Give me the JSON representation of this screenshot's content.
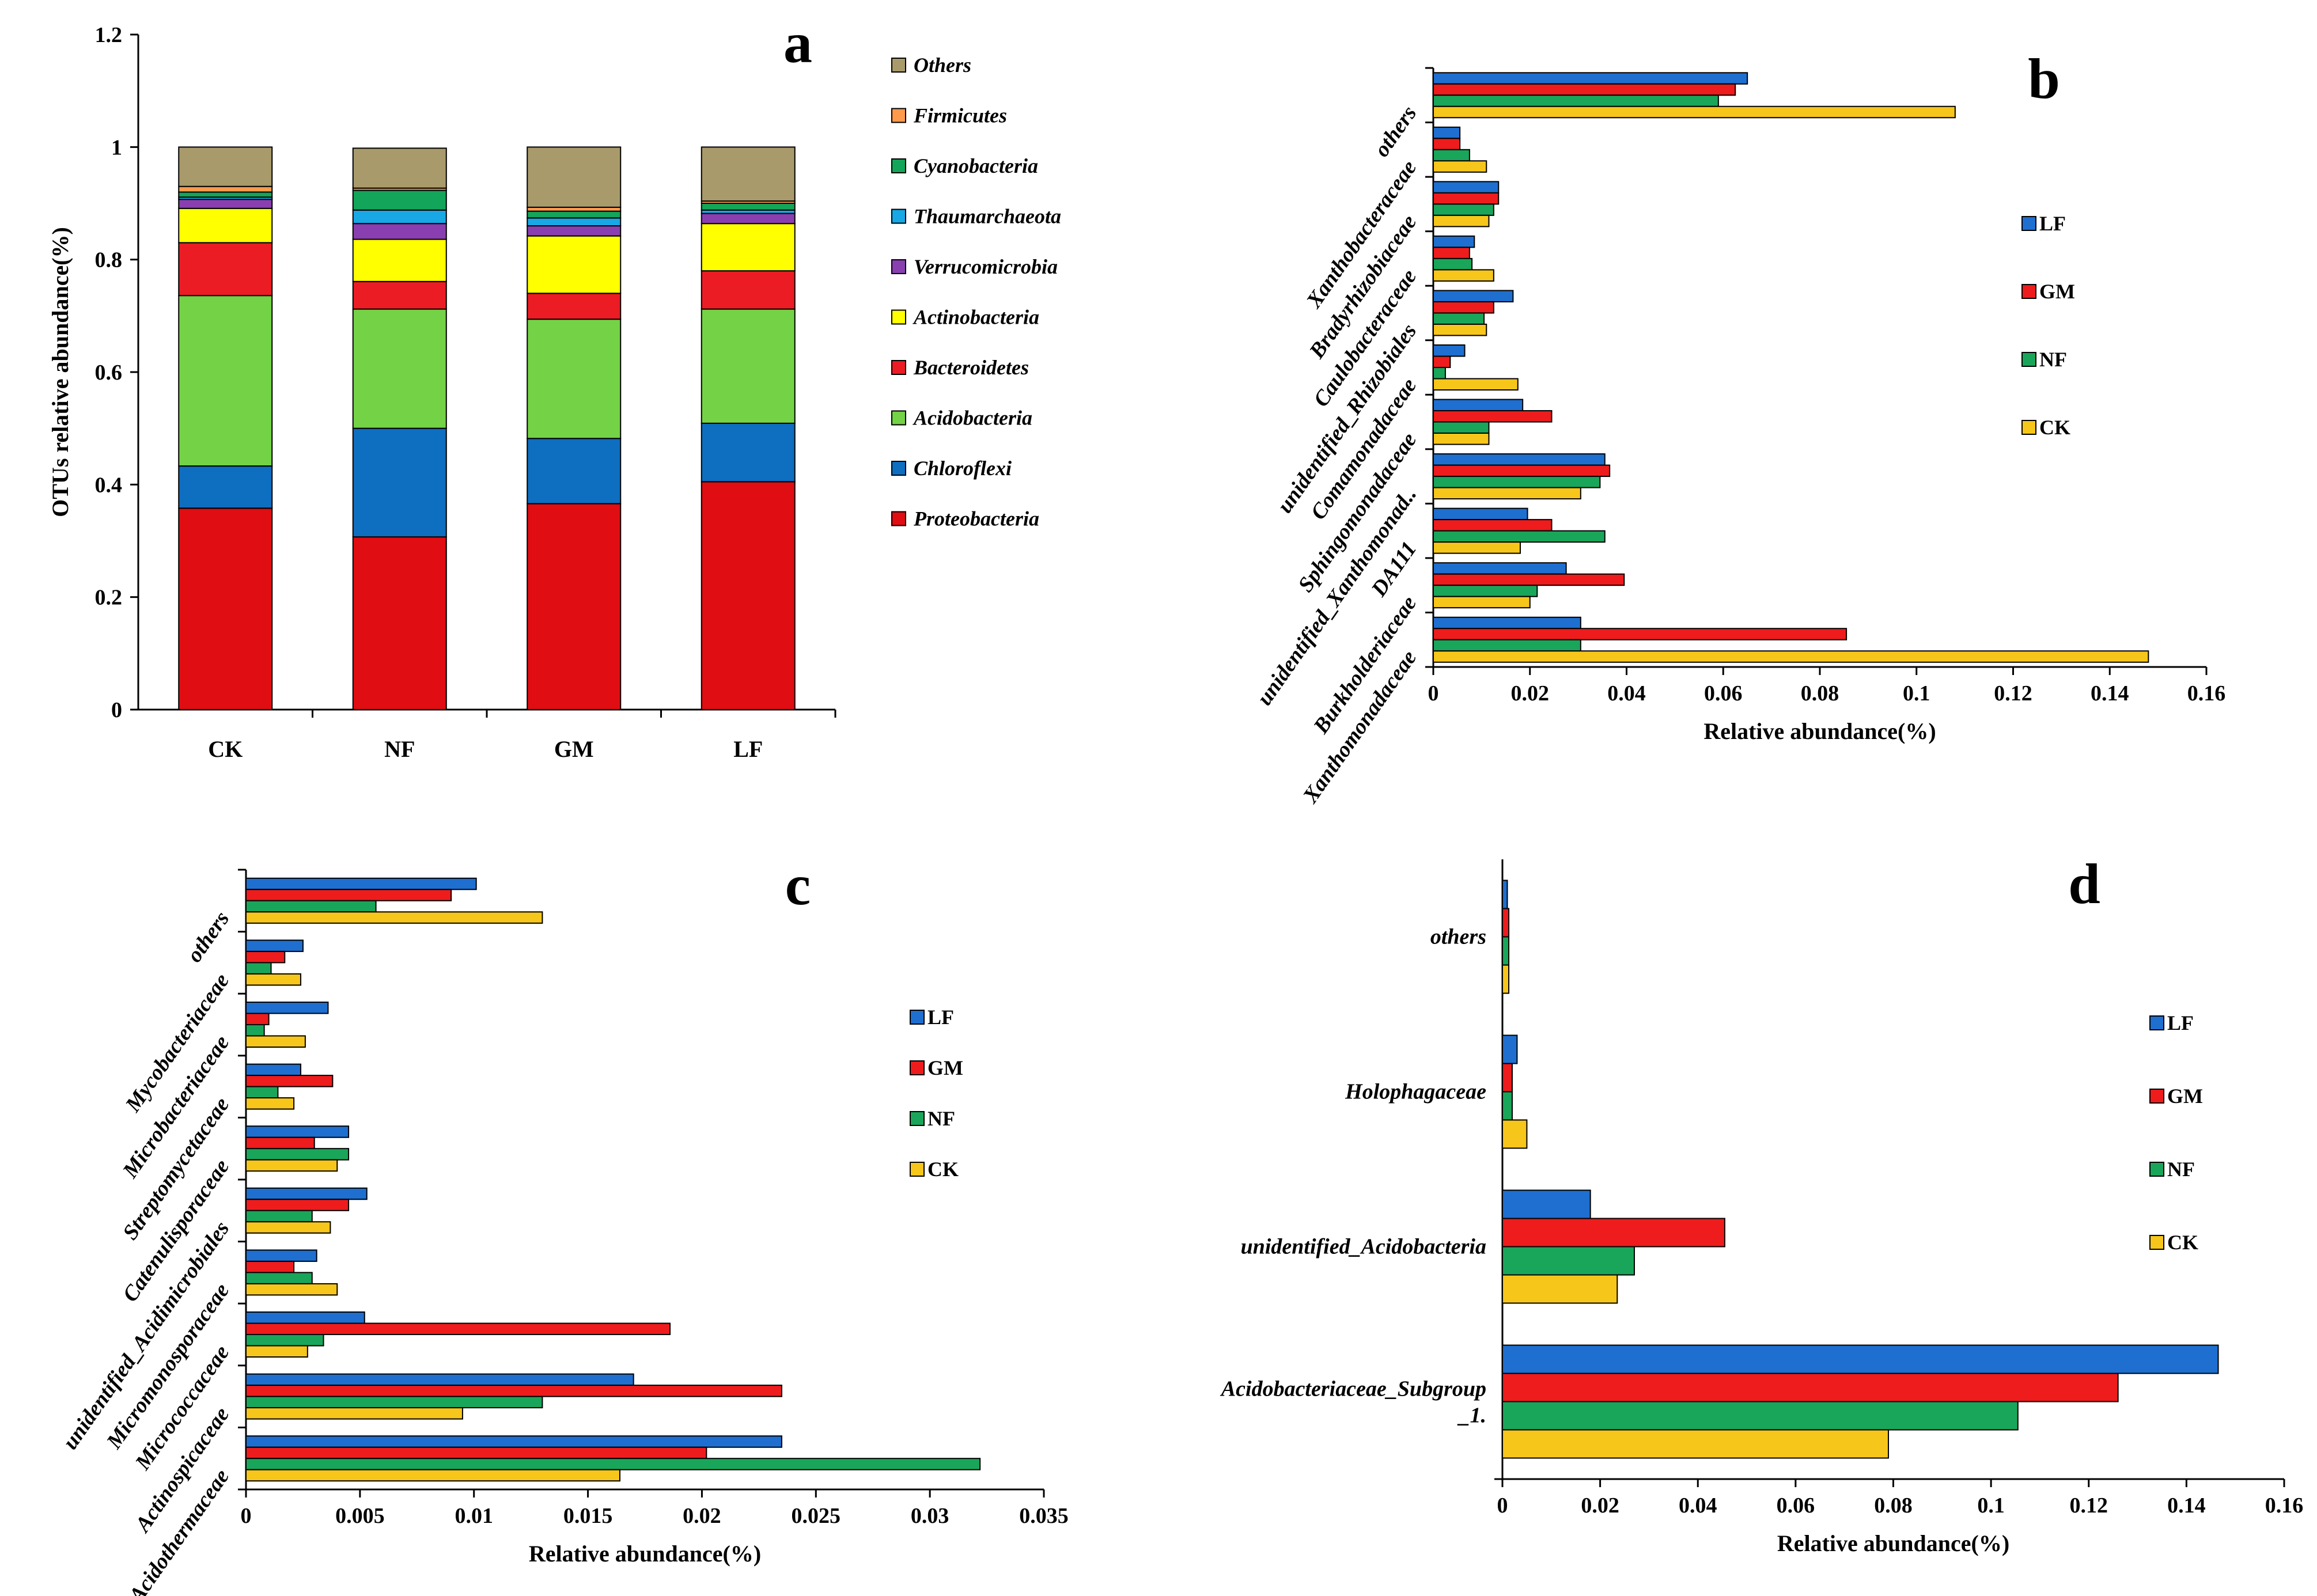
{
  "colors": {
    "Proteobacteria": "#e00d12",
    "Chloroflexi": "#0e6ec0",
    "Acidobacteria": "#74d246",
    "Bacteroidetes": "#ec1c24",
    "Actinobacteria": "#ffff00",
    "Verrucomicrobia": "#8a3fb0",
    "Thaumarchaeota": "#18a8e6",
    "Cyanobacteria": "#13a55a",
    "Firmicutes": "#ff9a4c",
    "Others": "#a99a6b",
    "LF": "#1e6fd0",
    "GM": "#ee1c1c",
    "NF": "#1aa65a",
    "CK": "#f7c61a"
  },
  "chart_data": [
    {
      "type": "bar",
      "stacked": true,
      "panel_label": "a",
      "ylabel": "OTUs relative abundance(%)",
      "ylim": [
        0,
        1.2
      ],
      "yticks": [
        "0",
        "0.2",
        "0.4",
        "0.6",
        "0.8",
        "1",
        "1.2"
      ],
      "categories": [
        "CK",
        "NF",
        "GM",
        "LF"
      ],
      "legend_position": "right",
      "series": [
        {
          "name": "Proteobacteria",
          "values": [
            0.358,
            0.307,
            0.366,
            0.405
          ]
        },
        {
          "name": "Chloroflexi",
          "values": [
            0.075,
            0.193,
            0.116,
            0.104
          ]
        },
        {
          "name": "Acidobacteria",
          "values": [
            0.303,
            0.212,
            0.212,
            0.203
          ]
        },
        {
          "name": "Bacteroidetes",
          "values": [
            0.094,
            0.049,
            0.046,
            0.068
          ]
        },
        {
          "name": "Actinobacteria",
          "values": [
            0.061,
            0.075,
            0.102,
            0.084
          ]
        },
        {
          "name": "Verrucomicrobia",
          "values": [
            0.016,
            0.028,
            0.018,
            0.018
          ]
        },
        {
          "name": "Thaumarchaeota",
          "values": [
            0.004,
            0.024,
            0.014,
            0.006
          ]
        },
        {
          "name": "Cyanobacteria",
          "values": [
            0.009,
            0.035,
            0.012,
            0.012
          ]
        },
        {
          "name": "Firmicutes",
          "values": [
            0.01,
            0.004,
            0.007,
            0.004
          ]
        },
        {
          "name": "Others",
          "values": [
            0.07,
            0.071,
            0.107,
            0.096
          ]
        }
      ],
      "legend_order": [
        "Others",
        "Firmicutes",
        "Cyanobacteria",
        "Thaumarchaeota",
        "Verrucomicrobia",
        "Actinobacteria",
        "Bacteroidetes",
        "Acidobacteria",
        "Chloroflexi",
        "Proteobacteria"
      ]
    },
    {
      "type": "bar",
      "orientation": "horizontal",
      "panel_label": "b",
      "xlabel": "Relative abundance(%)",
      "xlim": [
        0,
        0.16
      ],
      "xticks": [
        "0",
        "0.02",
        "0.04",
        "0.06",
        "0.08",
        "0.1",
        "0.12",
        "0.14",
        "0.16"
      ],
      "categories": [
        "others",
        "Xanthobacteraceae",
        "Bradyrhizobiaceae",
        "Caulobacteraceae",
        "unidentified_Rhizobiales",
        "Comamonadaceae",
        "Sphingomonadaceae",
        "unidentified_Xanthomonad..",
        "DA111",
        "Burkholderiaceae",
        "Xanthomonadaceae"
      ],
      "legend_position": "right",
      "series": [
        {
          "name": "LF",
          "values": [
            0.065,
            0.0055,
            0.0135,
            0.0085,
            0.0165,
            0.0065,
            0.0185,
            0.0355,
            0.0195,
            0.0275,
            0.0305
          ]
        },
        {
          "name": "GM",
          "values": [
            0.0625,
            0.0055,
            0.0135,
            0.0075,
            0.0125,
            0.0035,
            0.0245,
            0.0365,
            0.0245,
            0.0395,
            0.0855
          ]
        },
        {
          "name": "NF",
          "values": [
            0.059,
            0.0075,
            0.0125,
            0.008,
            0.0105,
            0.0025,
            0.0115,
            0.0345,
            0.0355,
            0.0215,
            0.0305
          ]
        },
        {
          "name": "CK",
          "values": [
            0.108,
            0.011,
            0.0115,
            0.0125,
            0.011,
            0.0175,
            0.0115,
            0.0305,
            0.018,
            0.02,
            0.148
          ]
        }
      ]
    },
    {
      "type": "bar",
      "orientation": "horizontal",
      "panel_label": "c",
      "xlabel": "Relative abundance(%)",
      "xlim": [
        0,
        0.035
      ],
      "xticks": [
        "0",
        "0.005",
        "0.01",
        "0.015",
        "0.02",
        "0.025",
        "0.03",
        "0.035"
      ],
      "categories": [
        "others",
        "Mycobacteriaceae",
        "Microbacteriaceae",
        "Streptomycetaceae",
        "Catenulisporaceae",
        "unidentified_Acidimicrobiales",
        "Micromonosporaceae",
        "Micrococcaceae",
        "Actinospicaceae",
        "Acidothermaceae"
      ],
      "legend_position": "right",
      "series": [
        {
          "name": "LF",
          "values": [
            0.0101,
            0.0025,
            0.0036,
            0.0024,
            0.0045,
            0.0053,
            0.0031,
            0.0052,
            0.017,
            0.0235
          ]
        },
        {
          "name": "GM",
          "values": [
            0.009,
            0.0017,
            0.001,
            0.0038,
            0.003,
            0.0045,
            0.0021,
            0.0186,
            0.0235,
            0.0202
          ]
        },
        {
          "name": "NF",
          "values": [
            0.0057,
            0.0011,
            0.0008,
            0.0014,
            0.0045,
            0.0029,
            0.0029,
            0.0034,
            0.013,
            0.0322
          ]
        },
        {
          "name": "CK",
          "values": [
            0.013,
            0.0024,
            0.0026,
            0.0021,
            0.004,
            0.0037,
            0.004,
            0.0027,
            0.0095,
            0.0164
          ]
        }
      ]
    },
    {
      "type": "bar",
      "orientation": "horizontal",
      "panel_label": "d",
      "xlabel": "Relative abundance(%)",
      "xlim": [
        0,
        0.16
      ],
      "xticks": [
        "0",
        "0.02",
        "0.04",
        "0.06",
        "0.08",
        "0.1",
        "0.12",
        "0.14",
        "0.16"
      ],
      "categories": [
        "others",
        "Holophagaceae",
        "unidentified_Acidobacteria",
        "Acidobacteriaceae_Subgroup _1."
      ],
      "category_display": [
        [
          "others"
        ],
        [
          "Holophagaceae"
        ],
        [
          "unidentified_Acidobacteria"
        ],
        [
          "Acidobacteriaceae_Subgroup",
          "_1."
        ]
      ],
      "legend_position": "right",
      "series": [
        {
          "name": "LF",
          "values": [
            0.001,
            0.003,
            0.018,
            0.1465
          ]
        },
        {
          "name": "GM",
          "values": [
            0.0013,
            0.002,
            0.0455,
            0.126
          ]
        },
        {
          "name": "NF",
          "values": [
            0.0013,
            0.002,
            0.027,
            0.1055
          ]
        },
        {
          "name": "CK",
          "values": [
            0.0013,
            0.005,
            0.0235,
            0.079
          ]
        }
      ]
    }
  ]
}
